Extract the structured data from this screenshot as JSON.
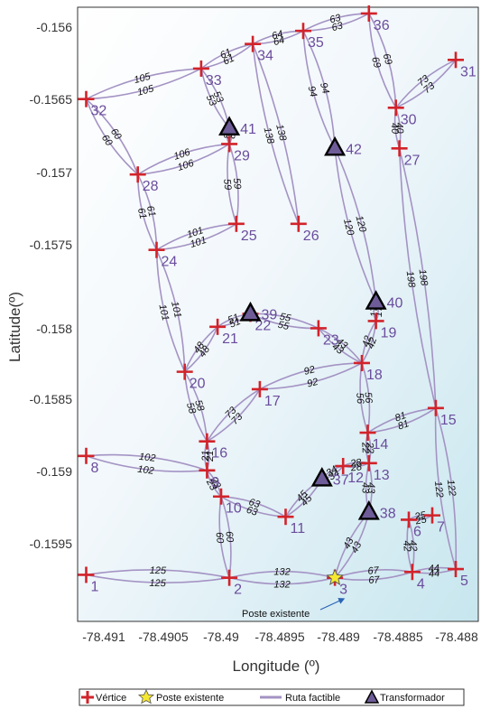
{
  "axes": {
    "xlabel": "Longitude (º)",
    "ylabel": "Latitude(º)",
    "xticks": [
      "-78.491",
      "-78.4905",
      "-78.49",
      "-78.4895",
      "-78.489",
      "-78.4885",
      "-78.488"
    ],
    "yticks": [
      "-0.156",
      "-0.1565",
      "-0.157",
      "-0.1575",
      "-0.158",
      "-0.1585",
      "-0.159",
      "-0.1595"
    ]
  },
  "legend": {
    "vertex": "Vértice",
    "existing_pole": "Poste existente",
    "feasible_route": "Ruta factible",
    "transformer": "Transformador"
  },
  "annotation": "Poste existente",
  "colors": {
    "route": "#a493c4",
    "vertex": "#d2232a",
    "vertex_label": "#6a4c9c",
    "pole": "#f5e830",
    "transformer": "#6e5c98"
  },
  "diagram": {
    "vertices": [
      {
        "id": "1",
        "x": -78.49115,
        "y": -0.15977
      },
      {
        "id": "2",
        "x": -78.48993,
        "y": -0.15979
      },
      {
        "id": "3",
        "x": -78.48903,
        "y": -0.15979
      },
      {
        "id": "4",
        "x": -78.48837,
        "y": -0.15975
      },
      {
        "id": "5",
        "x": -78.488,
        "y": -0.15973
      },
      {
        "id": "6",
        "x": -78.4884,
        "y": -0.15939
      },
      {
        "id": "7",
        "x": -78.4882,
        "y": -0.15936
      },
      {
        "id": "8",
        "x": -78.49115,
        "y": -0.15895
      },
      {
        "id": "9",
        "x": -78.49012,
        "y": -0.15905
      },
      {
        "id": "10",
        "x": -78.49,
        "y": -0.15923
      },
      {
        "id": "11",
        "x": -78.48945,
        "y": -0.15937
      },
      {
        "id": "12",
        "x": -78.48896,
        "y": -0.15902
      },
      {
        "id": "13",
        "x": -78.48874,
        "y": -0.159
      },
      {
        "id": "14",
        "x": -78.48875,
        "y": -0.15879
      },
      {
        "id": "15",
        "x": -78.48817,
        "y": -0.15862
      },
      {
        "id": "16",
        "x": -78.49012,
        "y": -0.15885
      },
      {
        "id": "17",
        "x": -78.48967,
        "y": -0.15849
      },
      {
        "id": "18",
        "x": -78.4888,
        "y": -0.15831
      },
      {
        "id": "19",
        "x": -78.48868,
        "y": -0.15802
      },
      {
        "id": "20",
        "x": -78.49031,
        "y": -0.15837
      },
      {
        "id": "21",
        "x": -78.49003,
        "y": -0.15806
      },
      {
        "id": "22",
        "x": -78.48975,
        "y": -0.15797
      },
      {
        "id": "23",
        "x": -78.48917,
        "y": -0.15807
      },
      {
        "id": "24",
        "x": -78.49055,
        "y": -0.15753
      },
      {
        "id": "25",
        "x": -78.48987,
        "y": -0.15735
      },
      {
        "id": "26",
        "x": -78.48934,
        "y": -0.15735
      },
      {
        "id": "27",
        "x": -78.48848,
        "y": -0.15683
      },
      {
        "id": "28",
        "x": -78.49071,
        "y": -0.15701
      },
      {
        "id": "29",
        "x": -78.48993,
        "y": -0.1568
      },
      {
        "id": "30",
        "x": -78.48851,
        "y": -0.15655
      },
      {
        "id": "31",
        "x": -78.488,
        "y": -0.15622
      },
      {
        "id": "32",
        "x": -78.49115,
        "y": -0.15649
      },
      {
        "id": "33",
        "x": -78.49017,
        "y": -0.15628
      },
      {
        "id": "34",
        "x": -78.48973,
        "y": -0.15611
      },
      {
        "id": "35",
        "x": -78.4893,
        "y": -0.15602
      },
      {
        "id": "36",
        "x": -78.48874,
        "y": -0.1559
      }
    ],
    "edges": [
      {
        "from": "1",
        "to": "2",
        "weight": "125"
      },
      {
        "from": "2",
        "to": "3",
        "weight": "132"
      },
      {
        "from": "3",
        "to": "4",
        "weight": "67"
      },
      {
        "from": "4",
        "to": "5",
        "weight": "44"
      },
      {
        "from": "4",
        "to": "6",
        "weight": "42"
      },
      {
        "from": "6",
        "to": "7",
        "weight": "25"
      },
      {
        "from": "5",
        "to": "15",
        "weight": "122"
      },
      {
        "from": "2",
        "to": "10",
        "weight": "60"
      },
      {
        "from": "10",
        "to": "9",
        "weight": "23"
      },
      {
        "from": "9",
        "to": "8",
        "weight": "102"
      },
      {
        "from": "9",
        "to": "16",
        "weight": "21"
      },
      {
        "from": "10",
        "to": "11",
        "weight": "63"
      },
      {
        "from": "11",
        "to": "T37",
        "weight": "45"
      },
      {
        "from": "T37",
        "to": "12",
        "weight": "34"
      },
      {
        "from": "12",
        "to": "13",
        "weight": "28"
      },
      {
        "from": "13",
        "to": "14",
        "weight": "22"
      },
      {
        "from": "13",
        "to": "T38",
        "weight": "43"
      },
      {
        "from": "T38",
        "to": "3",
        "weight": "43"
      },
      {
        "from": "14",
        "to": "15",
        "weight": "81"
      },
      {
        "from": "14",
        "to": "18",
        "weight": "56"
      },
      {
        "from": "16",
        "to": "20",
        "weight": "58"
      },
      {
        "from": "16",
        "to": "17",
        "weight": "73"
      },
      {
        "from": "17",
        "to": "18",
        "weight": "92"
      },
      {
        "from": "18",
        "to": "23",
        "weight": "43"
      },
      {
        "from": "18",
        "to": "19",
        "weight": "42"
      },
      {
        "from": "19",
        "to": "T40",
        "weight": "17"
      },
      {
        "from": "T40",
        "to": "T42",
        "weight": "120"
      },
      {
        "from": "T42",
        "to": "35",
        "weight": "94"
      },
      {
        "from": "23",
        "to": "T39",
        "weight": "55"
      },
      {
        "from": "T39",
        "to": "21",
        "weight": "51"
      },
      {
        "from": "21",
        "to": "20",
        "weight": "48"
      },
      {
        "from": "20",
        "to": "24",
        "weight": "101"
      },
      {
        "from": "24",
        "to": "25",
        "weight": "101"
      },
      {
        "from": "24",
        "to": "28",
        "weight": "61"
      },
      {
        "from": "25",
        "to": "29",
        "weight": "59"
      },
      {
        "from": "28",
        "to": "29",
        "weight": "106"
      },
      {
        "from": "28",
        "to": "32",
        "weight": "60"
      },
      {
        "from": "29",
        "to": "T41",
        "weight": "8"
      },
      {
        "from": "T41",
        "to": "33",
        "weight": "53"
      },
      {
        "from": "32",
        "to": "33",
        "weight": "105"
      },
      {
        "from": "33",
        "to": "34",
        "weight": "61"
      },
      {
        "from": "34",
        "to": "35",
        "weight": "64"
      },
      {
        "from": "34",
        "to": "26",
        "weight": "138"
      },
      {
        "from": "35",
        "to": "36",
        "weight": "63"
      },
      {
        "from": "36",
        "to": "30",
        "weight": "69"
      },
      {
        "from": "30",
        "to": "31",
        "weight": "73"
      },
      {
        "from": "30",
        "to": "27",
        "weight": "40"
      },
      {
        "from": "27",
        "to": "15",
        "weight": "198"
      }
    ],
    "transformers": [
      {
        "id": "T37",
        "label": "37",
        "x": -78.48914,
        "y": -0.15911
      },
      {
        "id": "T38",
        "label": "38",
        "x": -78.48874,
        "y": -0.15934
      },
      {
        "id": "T39",
        "label": "39",
        "x": -78.48975,
        "y": -0.15797
      },
      {
        "id": "T40",
        "label": "40",
        "x": -78.48868,
        "y": -0.15789
      },
      {
        "id": "T41",
        "label": "41",
        "x": -78.48993,
        "y": -0.15669
      },
      {
        "id": "T42",
        "label": "42",
        "x": -78.48903,
        "y": -0.15683
      }
    ],
    "existing_poles": [
      {
        "id": "3",
        "x": -78.48903,
        "y": -0.15979
      }
    ]
  }
}
